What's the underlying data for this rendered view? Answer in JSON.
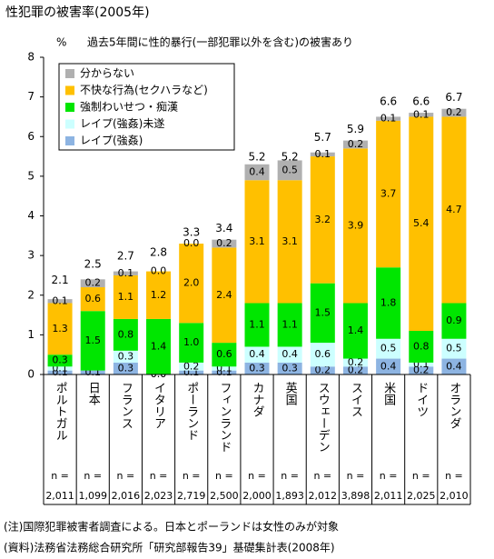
{
  "chart_data": {
    "type": "stacked-bar",
    "title": "性犯罪の被害率(2005年)",
    "subtitle": "過去5年間に性的暴行(一部犯罪以外を含む)の被害あり",
    "y_label": "%",
    "categories": [
      "ポルトガル",
      "日本",
      "フランス",
      "イタリア",
      "ポーランド",
      "フィンランド",
      "カナダ",
      "英国",
      "スウェーデン",
      "スイス",
      "米国",
      "ドイツ",
      "オランダ"
    ],
    "series": [
      {
        "name": "レイプ(強姦)",
        "color": "#8db4e2",
        "values": [
          0.1,
          0.1,
          0.3,
          0.0,
          0.1,
          0.1,
          0.3,
          0.3,
          0.2,
          0.2,
          0.4,
          0.2,
          0.4
        ],
        "value_labels": [
          "0.1",
          "0.1",
          "0.3",
          "0.0",
          "0.1",
          "0.1",
          "0.3",
          "0.3",
          "0.2",
          "0.2",
          "0.4",
          "0.2",
          "0.4"
        ]
      },
      {
        "name": "レイプ(強姦)未遂",
        "color": "#ccffff",
        "values": [
          0.1,
          0.0,
          0.3,
          0.0,
          0.2,
          0.1,
          0.4,
          0.4,
          0.6,
          0.2,
          0.5,
          0.1,
          0.5
        ],
        "value_labels": [
          "0.1",
          null,
          "0.3",
          "0.0",
          "0.2",
          "0.1",
          "0.4",
          "0.4",
          "0.6",
          "0.2",
          "0.5",
          "0.1",
          "0.5"
        ]
      },
      {
        "name": "強制わいせつ・痴漢",
        "color": "#00e600",
        "values": [
          0.3,
          1.5,
          0.8,
          1.4,
          1.0,
          0.6,
          1.1,
          1.1,
          1.5,
          1.4,
          1.8,
          0.8,
          0.9
        ],
        "value_labels": [
          "0.3",
          "1.5",
          "0.8",
          "1.4",
          "1.0",
          "0.6",
          "1.1",
          "1.1",
          "1.5",
          "1.4",
          "1.8",
          "0.8",
          "0.9"
        ]
      },
      {
        "name": "不快な行為(セクハラなど)",
        "color": "#ffc000",
        "values": [
          1.3,
          0.6,
          1.1,
          1.2,
          2.0,
          2.4,
          3.1,
          3.1,
          3.2,
          3.9,
          3.7,
          5.4,
          4.7
        ],
        "value_labels": [
          "1.3",
          "0.6",
          "1.1",
          "1.2",
          "2.0",
          "2.4",
          "3.1",
          "3.1",
          "3.2",
          "3.9",
          "3.7",
          "5.4",
          "4.7"
        ]
      },
      {
        "name": "分からない",
        "color": "#b0b0b0",
        "values": [
          0.1,
          0.2,
          0.1,
          0.0,
          0.0,
          0.2,
          0.4,
          0.5,
          0.1,
          0.2,
          0.1,
          0.1,
          0.2
        ],
        "value_labels": [
          "0.1",
          "0.2",
          "0.1",
          "0.0",
          "0.0",
          "0.2",
          "0.4",
          "0.5",
          "0.1",
          "0.2",
          "0.1",
          "0.1",
          "0.2"
        ]
      }
    ],
    "totals": [
      2.1,
      2.5,
      2.7,
      2.8,
      3.3,
      3.4,
      5.2,
      5.2,
      5.7,
      5.9,
      6.6,
      6.6,
      6.7
    ],
    "n_label": "n =",
    "sample_sizes": [
      "2,011",
      "1,099",
      "2,016",
      "2,023",
      "2,719",
      "2,500",
      "2,000",
      "1,893",
      "2,012",
      "3,898",
      "2,011",
      "2,025",
      "2,010"
    ],
    "ylim": [
      0,
      8
    ],
    "yticks": [
      0,
      1,
      2,
      3,
      4,
      5,
      6,
      7,
      8
    ],
    "legend": "top-left",
    "notes": [
      "(注)国際犯罪被害者調査による。日本とポーランドは女性のみが対象",
      "(資料)法務省法務総合研究所「研究部報告39」基礎集計表(2008年)"
    ]
  }
}
